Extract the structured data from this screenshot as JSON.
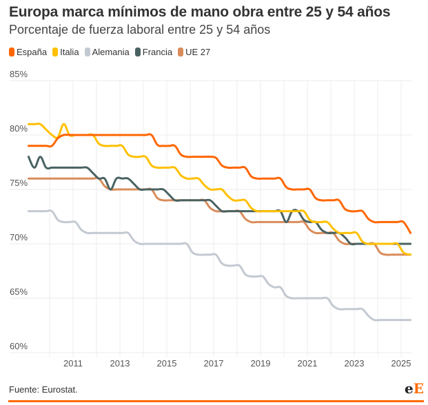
{
  "chart_data": {
    "type": "line",
    "title": "Europa marca mínimos de mano obra entre 25 y 54 años",
    "subtitle": "Porcentaje de fuerza laboral entre 25 y 54 años",
    "xlabel": "",
    "ylabel": "",
    "ylim": [
      60,
      85
    ],
    "xlim": [
      2009.1,
      2025.4
    ],
    "y_ticks": [
      60,
      65,
      70,
      75,
      80,
      85
    ],
    "y_tick_labels": [
      "60%",
      "65%",
      "70%",
      "75%",
      "80%",
      "85%"
    ],
    "x_ticks": [
      2011,
      2013,
      2015,
      2017,
      2019,
      2021,
      2023,
      2025
    ],
    "x_tick_labels": [
      "2011",
      "2013",
      "2015",
      "2017",
      "2019",
      "2021",
      "2023",
      "2025"
    ],
    "grid": true,
    "legend_position": "top-left",
    "x": [
      2009.1,
      2009.35,
      2009.6,
      2009.85,
      2010.1,
      2010.35,
      2010.6,
      2010.85,
      2011.1,
      2011.35,
      2011.6,
      2011.85,
      2012.1,
      2012.35,
      2012.6,
      2012.85,
      2013.1,
      2013.35,
      2013.6,
      2013.85,
      2014.1,
      2014.35,
      2014.6,
      2014.85,
      2015.1,
      2015.35,
      2015.6,
      2015.85,
      2016.1,
      2016.35,
      2016.6,
      2016.85,
      2017.1,
      2017.35,
      2017.6,
      2017.85,
      2018.1,
      2018.35,
      2018.6,
      2018.85,
      2019.1,
      2019.35,
      2019.6,
      2019.85,
      2020.1,
      2020.35,
      2020.6,
      2020.85,
      2021.1,
      2021.35,
      2021.6,
      2021.85,
      2022.1,
      2022.35,
      2022.6,
      2022.85,
      2023.1,
      2023.35,
      2023.6,
      2023.85,
      2024.1,
      2024.35,
      2024.6,
      2024.85,
      2025.1,
      2025.4
    ],
    "series": [
      {
        "name": "España",
        "color": "#ff6600",
        "values": [
          79,
          79,
          79,
          79,
          79,
          79.7,
          80,
          80,
          80,
          80,
          80,
          80,
          80,
          80,
          80,
          80,
          80,
          80,
          80,
          80,
          80,
          80,
          79.1,
          79,
          79,
          79,
          78.2,
          78,
          78,
          78,
          78,
          78,
          77.9,
          77.2,
          77,
          77,
          77,
          77,
          76.2,
          76,
          76,
          76,
          76,
          76,
          75.2,
          75,
          75,
          75,
          75,
          74.2,
          74,
          74,
          74,
          74,
          73.2,
          73,
          73,
          73,
          72.3,
          72,
          72,
          72,
          72,
          72,
          72,
          71
        ]
      },
      {
        "name": "Italia",
        "color": "#ffc000",
        "values": [
          81,
          81,
          81,
          80.5,
          80,
          79.8,
          81,
          80,
          80,
          80,
          80,
          80,
          79.2,
          79,
          79,
          79,
          79,
          78.2,
          78,
          78,
          78,
          77.2,
          77,
          77,
          77,
          77,
          76.3,
          76,
          76,
          76,
          75.4,
          75,
          75,
          75,
          74.4,
          74,
          74,
          74,
          73.3,
          73,
          73,
          73,
          73,
          73,
          73,
          73,
          73,
          73,
          72.2,
          72,
          72,
          72,
          71.4,
          71,
          71,
          71,
          71,
          70.2,
          70,
          70,
          70,
          70,
          70,
          70,
          69.2,
          69
        ]
      },
      {
        "name": "Alemania",
        "color": "#c3c9d1",
        "values": [
          73,
          73,
          73,
          73,
          73,
          72.2,
          72,
          72,
          72,
          71.3,
          71,
          71,
          71,
          71,
          71,
          71,
          71,
          71,
          70.3,
          70,
          70,
          70,
          70,
          70,
          70,
          70,
          70,
          70,
          69.2,
          69,
          69,
          69,
          69,
          68.2,
          68,
          68,
          68,
          67.2,
          67,
          67,
          67,
          66.3,
          66,
          66,
          65.2,
          65,
          65,
          65,
          65,
          65,
          65,
          65,
          64.3,
          64,
          64,
          64,
          64,
          64,
          63.4,
          63,
          63,
          63,
          63,
          63,
          63,
          63
        ]
      },
      {
        "name": "Francia",
        "color": "#4a6262",
        "values": [
          78,
          77,
          78,
          77,
          77,
          77,
          77,
          77,
          77,
          77,
          77,
          76.5,
          76,
          76,
          75,
          76,
          76,
          76,
          75.5,
          75,
          75,
          75,
          75,
          75,
          74.5,
          74,
          74,
          74,
          74,
          74,
          74,
          74,
          73.5,
          73,
          73,
          73,
          73,
          73,
          73,
          73,
          73,
          73,
          73,
          73,
          72,
          73,
          73,
          72.2,
          72,
          72,
          71.3,
          71,
          71,
          71,
          70.6,
          70,
          70,
          70,
          70,
          70,
          70,
          70,
          70,
          70,
          70,
          70
        ]
      },
      {
        "name": "UE 27",
        "color": "#d98c5a",
        "values": [
          76,
          76,
          76,
          76,
          76,
          76,
          76,
          76,
          76,
          76,
          76,
          76,
          76,
          75.3,
          75,
          75,
          75,
          75,
          75,
          75,
          75,
          75,
          74.2,
          74,
          74,
          74,
          74,
          74,
          74,
          74,
          74,
          73.3,
          73,
          73,
          73,
          73,
          73,
          72.3,
          72,
          72,
          72,
          72,
          72,
          72,
          72,
          72,
          72,
          72,
          71.3,
          71,
          71,
          71,
          71,
          70.3,
          70,
          70,
          70,
          70,
          70,
          70,
          69.2,
          69,
          69,
          69,
          69,
          69
        ]
      }
    ]
  },
  "legend": [
    {
      "label": "España",
      "color": "#ff6600"
    },
    {
      "label": "Italia",
      "color": "#ffc000"
    },
    {
      "label": "Alemania",
      "color": "#c3c9d1"
    },
    {
      "label": "Francia",
      "color": "#4a6262"
    },
    {
      "label": "UE 27",
      "color": "#d98c5a"
    }
  ],
  "footer": {
    "source": "Fuente: Eurostat.",
    "logo_e": "e",
    "logo_E": "E"
  }
}
